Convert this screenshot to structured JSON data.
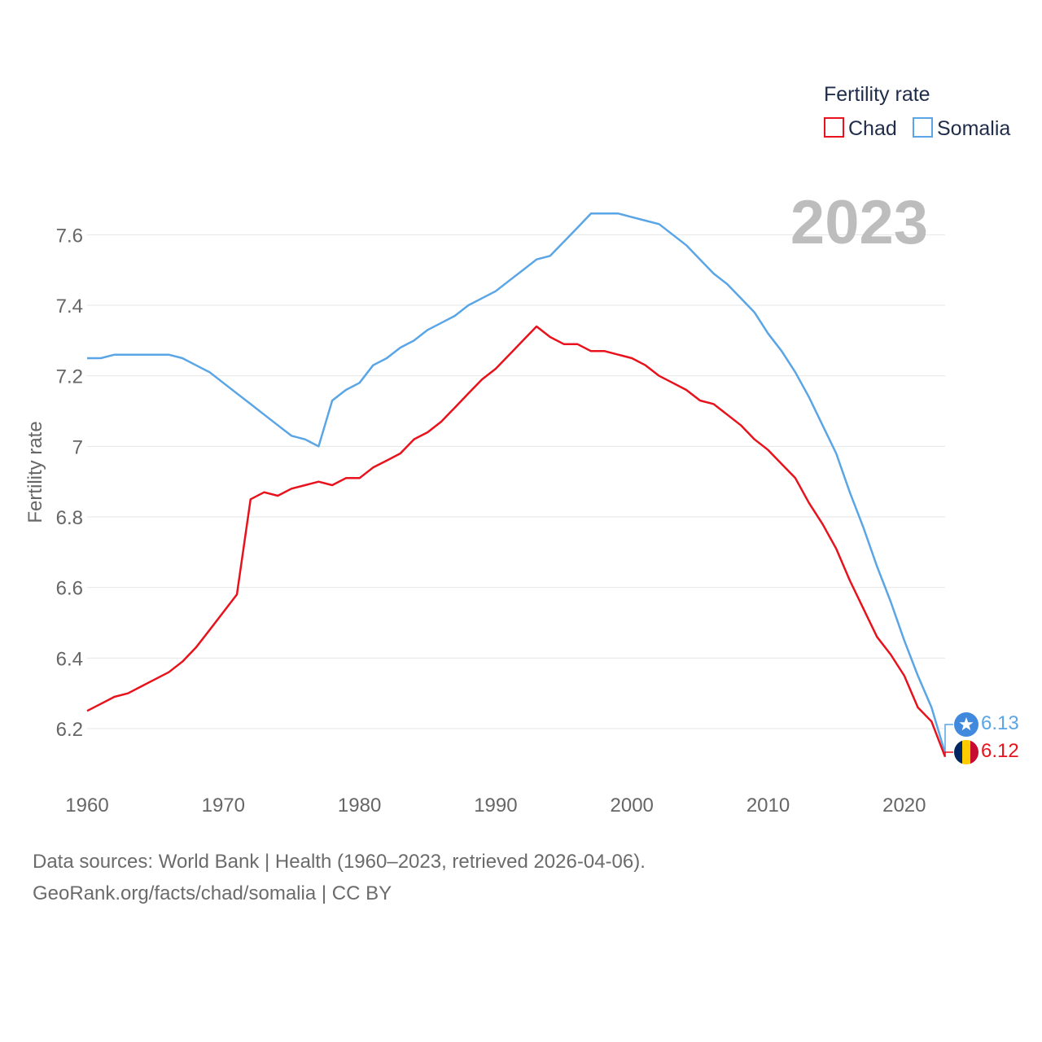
{
  "chart_data": {
    "type": "line",
    "legend_title": "Fertility rate",
    "ylabel": "Fertility rate",
    "year_label": "2023",
    "x_ticks": [
      1960,
      1970,
      1980,
      1990,
      2000,
      2010,
      2020
    ],
    "y_ticks": [
      6.2,
      6.4,
      6.6,
      6.8,
      7,
      7.2,
      7.4,
      7.6
    ],
    "y_tick_labels": [
      "6.2",
      "6.4",
      "6.6",
      "6.8",
      "7",
      "7.2",
      "7.4",
      "7.6"
    ],
    "ylim": [
      6.05,
      7.73
    ],
    "xlim": [
      1960,
      2023
    ],
    "legend_position": "top-right",
    "series": [
      {
        "name": "Chad",
        "color": "#e8121c",
        "flag": "chad-flag",
        "end_label": "6.12",
        "x": [
          1960,
          1961,
          1962,
          1963,
          1964,
          1965,
          1966,
          1967,
          1968,
          1969,
          1970,
          1971,
          1972,
          1973,
          1974,
          1975,
          1976,
          1977,
          1978,
          1979,
          1980,
          1981,
          1982,
          1983,
          1984,
          1985,
          1986,
          1987,
          1988,
          1989,
          1990,
          1991,
          1992,
          1993,
          1994,
          1995,
          1996,
          1997,
          1998,
          1999,
          2000,
          2001,
          2002,
          2003,
          2004,
          2005,
          2006,
          2007,
          2008,
          2009,
          2010,
          2011,
          2012,
          2013,
          2014,
          2015,
          2016,
          2017,
          2018,
          2019,
          2020,
          2021,
          2022,
          2023
        ],
        "values": [
          6.25,
          6.27,
          6.29,
          6.3,
          6.32,
          6.34,
          6.36,
          6.39,
          6.43,
          6.48,
          6.53,
          6.58,
          6.85,
          6.87,
          6.86,
          6.88,
          6.89,
          6.9,
          6.89,
          6.91,
          6.91,
          6.94,
          6.96,
          6.98,
          7.02,
          7.04,
          7.07,
          7.11,
          7.15,
          7.19,
          7.22,
          7.26,
          7.3,
          7.34,
          7.31,
          7.29,
          7.29,
          7.27,
          7.27,
          7.26,
          7.25,
          7.23,
          7.2,
          7.18,
          7.16,
          7.13,
          7.12,
          7.09,
          7.06,
          7.02,
          6.99,
          6.95,
          6.91,
          6.84,
          6.78,
          6.71,
          6.62,
          6.54,
          6.46,
          6.41,
          6.35,
          6.26,
          6.22,
          6.12
        ]
      },
      {
        "name": "Somalia",
        "color": "#5aa5e6",
        "flag": "somalia-flag",
        "end_label": "6.13",
        "x": [
          1960,
          1961,
          1962,
          1963,
          1964,
          1965,
          1966,
          1967,
          1968,
          1969,
          1970,
          1971,
          1972,
          1973,
          1974,
          1975,
          1976,
          1977,
          1978,
          1979,
          1980,
          1981,
          1982,
          1983,
          1984,
          1985,
          1986,
          1987,
          1988,
          1989,
          1990,
          1991,
          1992,
          1993,
          1994,
          1995,
          1996,
          1997,
          1998,
          1999,
          2000,
          2001,
          2002,
          2003,
          2004,
          2005,
          2006,
          2007,
          2008,
          2009,
          2010,
          2011,
          2012,
          2013,
          2014,
          2015,
          2016,
          2017,
          2018,
          2019,
          2020,
          2021,
          2022,
          2023
        ],
        "values": [
          7.25,
          7.25,
          7.26,
          7.26,
          7.26,
          7.26,
          7.26,
          7.25,
          7.23,
          7.21,
          7.18,
          7.15,
          7.12,
          7.09,
          7.06,
          7.03,
          7.02,
          7.0,
          7.13,
          7.16,
          7.18,
          7.23,
          7.25,
          7.28,
          7.3,
          7.33,
          7.35,
          7.37,
          7.4,
          7.42,
          7.44,
          7.47,
          7.5,
          7.53,
          7.54,
          7.58,
          7.62,
          7.66,
          7.66,
          7.66,
          7.65,
          7.64,
          7.63,
          7.6,
          7.57,
          7.53,
          7.49,
          7.46,
          7.42,
          7.38,
          7.32,
          7.27,
          7.21,
          7.14,
          7.06,
          6.98,
          6.87,
          6.77,
          6.66,
          6.56,
          6.45,
          6.35,
          6.26,
          6.13
        ]
      }
    ]
  },
  "footer": {
    "sources": "Data sources: World Bank | Health (1960–2023, retrieved 2026-04-06).",
    "credit": "GeoRank.org/facts/chad/somalia | CC BY"
  }
}
